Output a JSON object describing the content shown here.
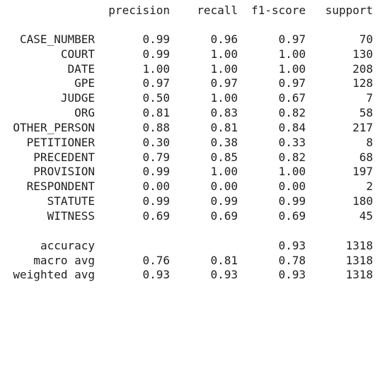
{
  "header": {
    "precision": "precision",
    "recall": "recall",
    "f1_score": "f1-score",
    "support": "support"
  },
  "rows": [
    {
      "label": "CASE_NUMBER",
      "precision": "0.99",
      "recall": "0.96",
      "f1_score": "0.97",
      "support": "70"
    },
    {
      "label": "COURT",
      "precision": "0.99",
      "recall": "1.00",
      "f1_score": "1.00",
      "support": "130"
    },
    {
      "label": "DATE",
      "precision": "1.00",
      "recall": "1.00",
      "f1_score": "1.00",
      "support": "208"
    },
    {
      "label": "GPE",
      "precision": "0.97",
      "recall": "0.97",
      "f1_score": "0.97",
      "support": "128"
    },
    {
      "label": "JUDGE",
      "precision": "0.50",
      "recall": "1.00",
      "f1_score": "0.67",
      "support": "7"
    },
    {
      "label": "ORG",
      "precision": "0.81",
      "recall": "0.83",
      "f1_score": "0.82",
      "support": "58"
    },
    {
      "label": "OTHER_PERSON",
      "precision": "0.88",
      "recall": "0.81",
      "f1_score": "0.84",
      "support": "217"
    },
    {
      "label": "PETITIONER",
      "precision": "0.30",
      "recall": "0.38",
      "f1_score": "0.33",
      "support": "8"
    },
    {
      "label": "PRECEDENT",
      "precision": "0.79",
      "recall": "0.85",
      "f1_score": "0.82",
      "support": "68"
    },
    {
      "label": "PROVISION",
      "precision": "0.99",
      "recall": "1.00",
      "f1_score": "1.00",
      "support": "197"
    },
    {
      "label": "RESPONDENT",
      "precision": "0.00",
      "recall": "0.00",
      "f1_score": "0.00",
      "support": "2"
    },
    {
      "label": "STATUTE",
      "precision": "0.99",
      "recall": "0.99",
      "f1_score": "0.99",
      "support": "180"
    },
    {
      "label": "WITNESS",
      "precision": "0.69",
      "recall": "0.69",
      "f1_score": "0.69",
      "support": "45"
    }
  ],
  "summary": {
    "accuracy": {
      "label": "accuracy",
      "precision": "",
      "recall": "",
      "f1_score": "0.93",
      "support": "1318"
    },
    "macro_avg": {
      "label": "macro avg",
      "precision": "0.76",
      "recall": "0.81",
      "f1_score": "0.78",
      "support": "1318"
    },
    "weighted_avg": {
      "label": "weighted avg",
      "precision": "0.93",
      "recall": "0.93",
      "f1_score": "0.93",
      "support": "1318"
    }
  }
}
